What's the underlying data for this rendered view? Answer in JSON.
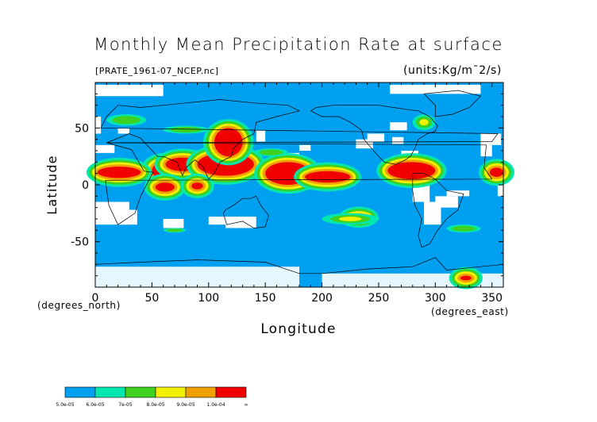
{
  "chart_data": {
    "type": "heatmap",
    "title": "Monthly Mean Precipitation Rate at surface",
    "subtitle_left": "[PRATE_1961-07_NCEP.nc]",
    "subtitle_right": "(units:Kg/m¯2/s)",
    "xlabel": "Longitude",
    "ylabel": "Latitude",
    "x_unit_label": "(degrees_east)",
    "y_unit_label": "(degrees_north)",
    "xlim": [
      0,
      360
    ],
    "ylim": [
      -90,
      90
    ],
    "xticks": [
      0,
      50,
      100,
      150,
      200,
      250,
      300,
      350
    ],
    "yticks": [
      -50,
      0,
      50
    ],
    "colorbar": {
      "labels": [
        "5.0e-05",
        "6.0e-05",
        "7e-05",
        "8.0e-05",
        "9.0e-05",
        "1.0e-04",
        "∞"
      ],
      "colors": [
        "#00a0f0",
        "#00e8b0",
        "#40d020",
        "#f0f000",
        "#f0a000",
        "#f00000"
      ]
    },
    "background_level_color": "#00a0f0",
    "regions": [
      {
        "level": 5,
        "lon": [
          50,
          70
        ],
        "lat": [
          20,
          5
        ]
      },
      {
        "level": 5,
        "lon": [
          62,
          92
        ],
        "lat": [
          24,
          12
        ]
      },
      {
        "level": 5,
        "lon": [
          90,
          140
        ],
        "lat": [
          28,
          8
        ]
      },
      {
        "level": 5,
        "lon": [
          105,
          130
        ],
        "lat": [
          50,
          25
        ]
      },
      {
        "level": 5,
        "lon": [
          150,
          190
        ],
        "lat": [
          20,
          0
        ]
      },
      {
        "level": 5,
        "lon": [
          185,
          225
        ],
        "lat": [
          12,
          2
        ]
      },
      {
        "level": 5,
        "lon": [
          258,
          300
        ],
        "lat": [
          20,
          5
        ]
      },
      {
        "level": 5,
        "lon": [
          348,
          360
        ],
        "lat": [
          15,
          7
        ]
      },
      {
        "level": 5,
        "lon": [
          2,
          40
        ],
        "lat": [
          16,
          6
        ]
      },
      {
        "level": 5,
        "lon": [
          53,
          70
        ],
        "lat": [
          2,
          -6
        ]
      },
      {
        "level": 5,
        "lon": [
          85,
          95
        ],
        "lat": [
          2,
          -4
        ]
      },
      {
        "level": 5,
        "lon": [
          225,
          240
        ],
        "lat": [
          -27,
          -30
        ]
      },
      {
        "level": 5,
        "lon": [
          322,
          332
        ],
        "lat": [
          -80,
          -84
        ]
      }
    ]
  }
}
